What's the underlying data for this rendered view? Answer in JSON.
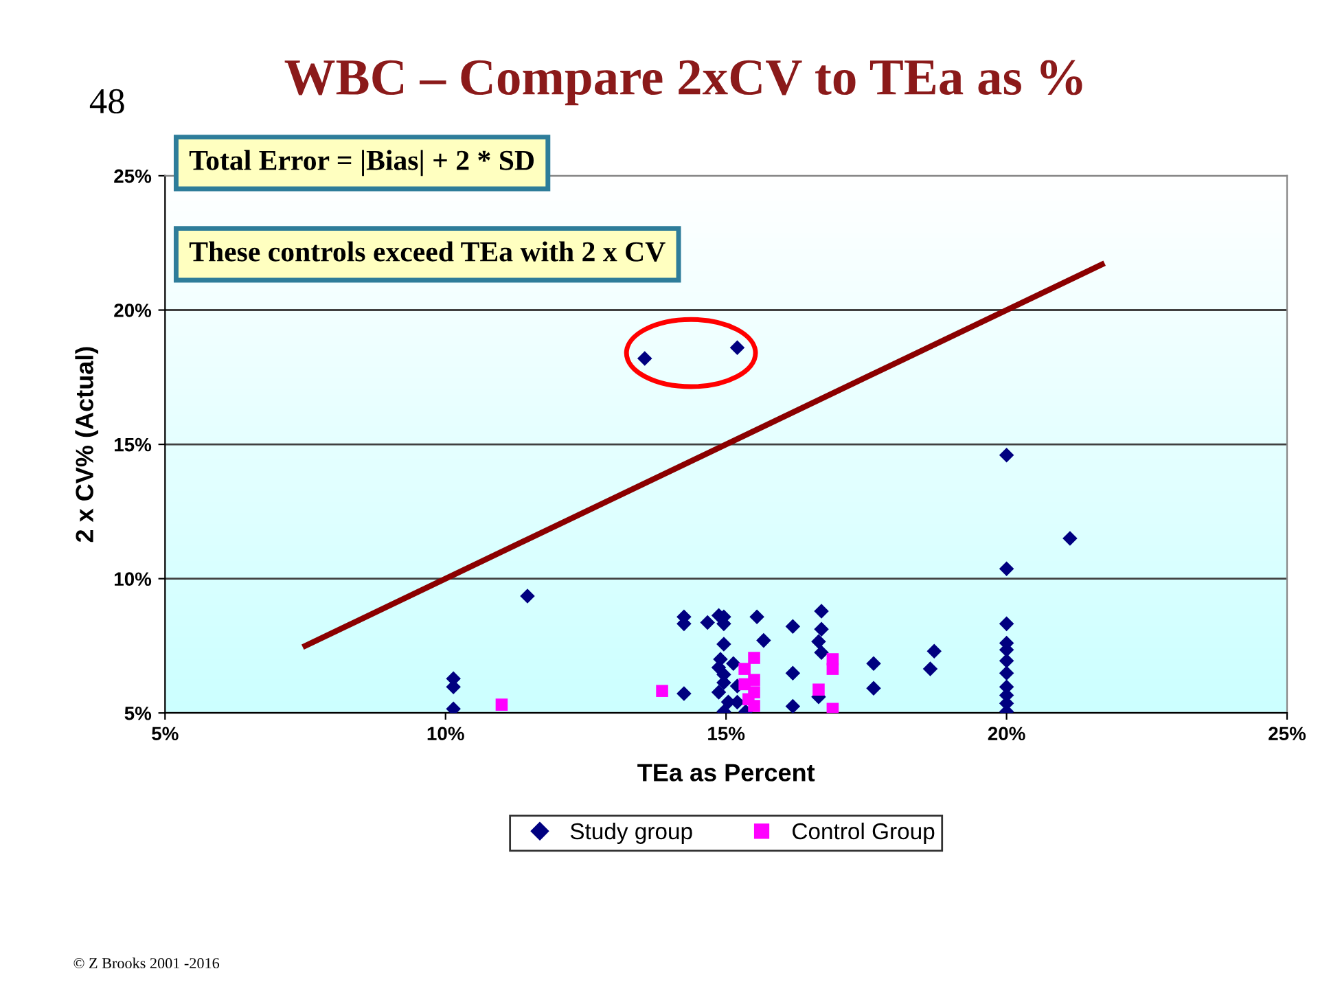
{
  "chart_data": {
    "type": "scatter",
    "title": "WBC – Compare 2xCV to TEa as %",
    "xlabel": "TEa as Percent",
    "ylabel": "2 x CV% (Actual)",
    "annotations": [
      "48",
      "Total Error = |Bias| + 2 * SD",
      "These controls exceed TEa with 2 x CV",
      "© Z Brooks 2001 -2016"
    ],
    "series": [
      {
        "name": "Study group",
        "color": "#000080",
        "marker": "diamond",
        "x": [
          10.14,
          10.14,
          10.14,
          11.46,
          14.25,
          14.25,
          14.25,
          13.55,
          15.2,
          14.67,
          14.87,
          14.96,
          14.96,
          14.96,
          14.9,
          14.87,
          14.96,
          14.96,
          14.87,
          15.04,
          14.96,
          15.13,
          15.2,
          15.35,
          15.2,
          15.55,
          15.67,
          16.19,
          16.19,
          16.19,
          16.7,
          16.7,
          16.65,
          16.7,
          16.65,
          17.63,
          17.63,
          18.71,
          18.64,
          20.0,
          20.0,
          20.0,
          20.0,
          20.0,
          20.0,
          20.0,
          20.0,
          20.0,
          20.0,
          20.0,
          21.13
        ],
        "values": [
          6.28,
          5.97,
          5.15,
          9.35,
          8.58,
          8.32,
          5.72,
          18.2,
          18.6,
          8.37,
          8.63,
          8.58,
          8.32,
          7.56,
          7.0,
          6.69,
          6.43,
          6.13,
          5.77,
          5.41,
          5.05,
          6.84,
          5.4,
          5.05,
          6.0,
          8.58,
          7.7,
          8.22,
          6.48,
          5.25,
          8.79,
          8.12,
          7.66,
          7.25,
          5.6,
          6.84,
          5.92,
          7.3,
          6.64,
          14.6,
          10.37,
          8.32,
          7.6,
          7.35,
          6.94,
          6.48,
          5.97,
          5.66,
          5.36,
          5.05,
          11.5
        ]
      },
      {
        "name": "Control Group",
        "color": "#ff00ff",
        "marker": "square",
        "x": [
          11.0,
          13.86,
          15.33,
          15.33,
          15.5,
          15.5,
          15.5,
          15.5,
          15.4,
          16.65,
          16.9,
          16.9,
          16.9
        ],
        "values": [
          5.31,
          5.82,
          6.64,
          6.07,
          7.05,
          6.23,
          5.77,
          5.26,
          5.51,
          5.87,
          7.0,
          6.64,
          5.15
        ]
      },
      {
        "type": "line",
        "color": "#8b0000",
        "marker": "none",
        "line_style": "solid",
        "x": [
          7.5,
          21.7
        ],
        "values": [
          7.5,
          21.7
        ]
      }
    ],
    "xlim": [
      5,
      25
    ],
    "ylim": [
      5,
      25
    ],
    "xticks": [
      {
        "value": 5,
        "label": "5%"
      },
      {
        "value": 10,
        "label": "10%"
      },
      {
        "value": 15,
        "label": "15%"
      },
      {
        "value": 20,
        "label": "20%"
      },
      {
        "value": 25,
        "label": "25%"
      }
    ],
    "yticks": [
      {
        "value": 5,
        "label": "5%"
      },
      {
        "value": 10,
        "label": "10%"
      },
      {
        "value": 15,
        "label": "15%"
      },
      {
        "value": 20,
        "label": "20%"
      },
      {
        "value": 25,
        "label": "25%"
      }
    ],
    "grid": "y",
    "legend": "bottom"
  }
}
